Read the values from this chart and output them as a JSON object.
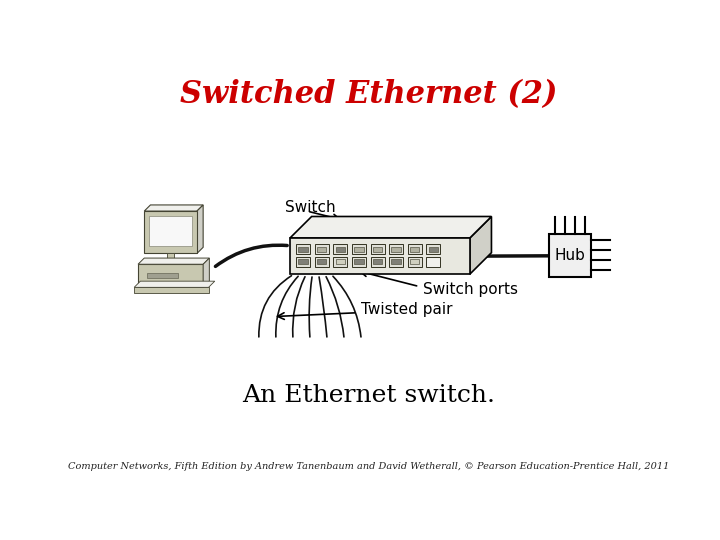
{
  "title": "Switched Ethernet (2)",
  "title_color": "#cc0000",
  "title_fontsize": 22,
  "subtitle": "An Ethernet switch.",
  "subtitle_fontsize": 18,
  "footer": "Computer Networks, Fifth Edition by Andrew Tanenbaum and David Wetherall, © Pearson Education-Prentice Hall, 2011",
  "footer_fontsize": 7,
  "label_switch": "Switch",
  "label_hub": "Hub",
  "label_switch_ports": "Switch ports",
  "label_twisted_pair": "Twisted pair",
  "bg_color": "#ffffff",
  "switch_body_color": "#e8e8e0",
  "switch_top_color": "#f0f0ec",
  "switch_right_color": "#d0d0c8",
  "computer_body_color": "#c8c8b0",
  "computer_screen_color": "#f8f8f8",
  "hub_color": "#f0f0f0",
  "port_gray": "#b0b0a0",
  "port_dark": "#808078",
  "line_color": "#000000"
}
